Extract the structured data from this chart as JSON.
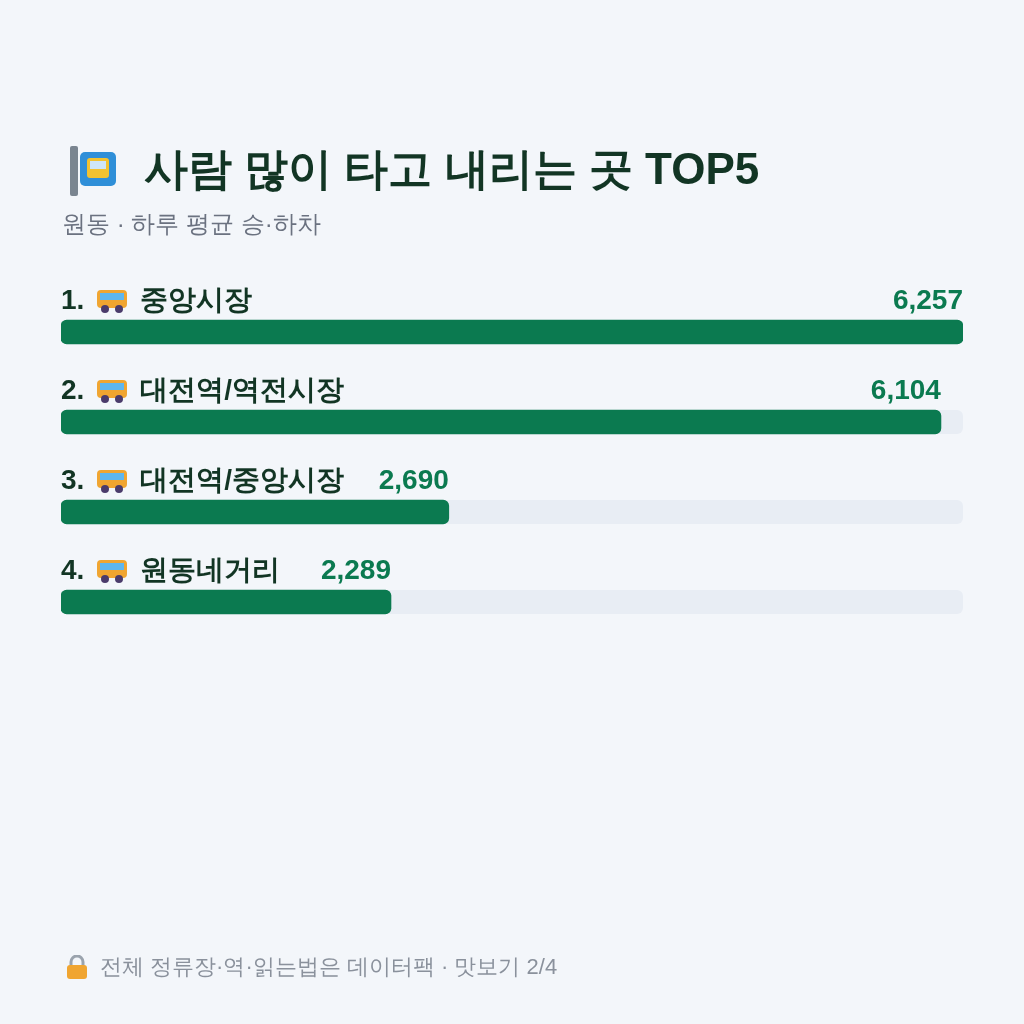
{
  "chart_data": {
    "type": "bar",
    "orientation": "horizontal",
    "title": "사람 많이 타고 내리는 곳 TOP5",
    "subtitle": "원동 · 하루 평균 승·하차",
    "categories": [
      "1. 중앙시장",
      "2. 대전역/역전시장",
      "3. 대전역/중앙시장",
      "4. 원동네거리"
    ],
    "values": [
      6257,
      6104,
      2690,
      2289
    ],
    "color": "#0b7a50",
    "value_labels": [
      "6,257",
      "6,104",
      "2,690",
      "2,289"
    ],
    "tick_labels": false,
    "grid": false,
    "legend": false,
    "annotations": [
      "전체 정류장·역·읽는법은 데이터팩 · 맛보기 2/4"
    ]
  }
}
